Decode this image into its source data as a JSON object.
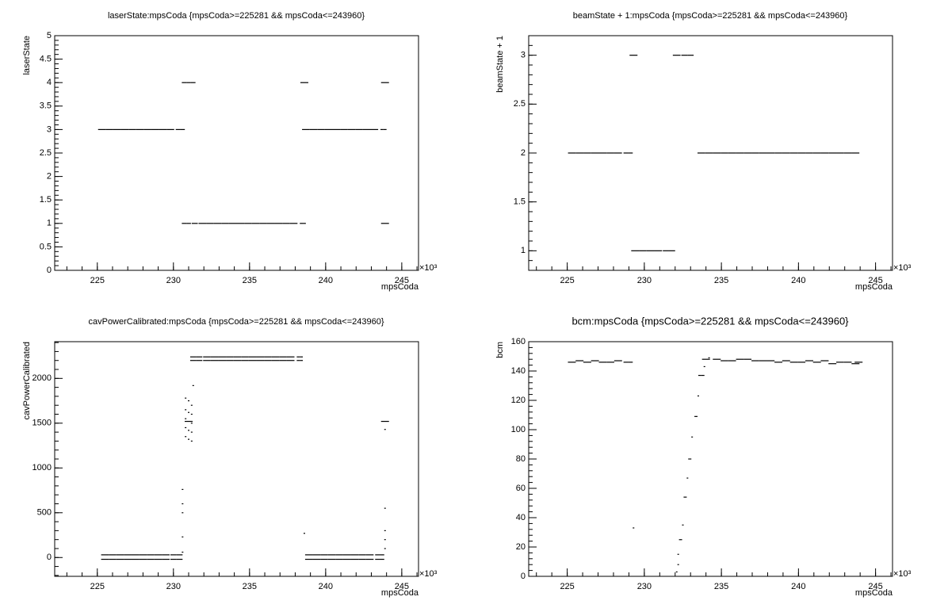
{
  "chart_data": [
    {
      "type": "scatter",
      "title": "laserState:mpsCoda {mpsCoda>=225281 && mpsCoda<=243960}",
      "x_label": "mpsCoda",
      "y_label": "laserState",
      "x_exponent": "×10³",
      "xlim": [
        222.2,
        246.1
      ],
      "xticks": [
        225,
        230,
        235,
        240,
        245
      ],
      "ylim": [
        0,
        5
      ],
      "yticks": [
        0,
        0.5,
        1,
        1.5,
        2,
        2.5,
        3,
        3.5,
        4,
        4.5,
        5
      ],
      "color": "#000000",
      "x": [
        225.3,
        225.8,
        226.3,
        226.8,
        227.3,
        227.8,
        228.3,
        228.8,
        229.3,
        229.8,
        230.3,
        230.6,
        230.7,
        231.0,
        231.3,
        230.7,
        231.0,
        231.4,
        231.9,
        232.4,
        232.9,
        233.4,
        233.9,
        234.4,
        234.9,
        235.4,
        235.9,
        236.4,
        236.9,
        237.4,
        237.9,
        238.4,
        238.6,
        238.6,
        238.7,
        239.2,
        239.7,
        240.2,
        240.7,
        241.2,
        241.7,
        242.2,
        242.7,
        243.2,
        243.7,
        243.9,
        243.9,
        243.9
      ],
      "values": [
        3,
        3,
        3,
        3,
        3,
        3,
        3,
        3,
        3,
        3,
        3,
        3,
        4,
        4,
        4,
        1,
        1,
        1,
        1,
        1,
        1,
        1,
        1,
        1,
        1,
        1,
        1,
        1,
        1,
        1,
        1,
        1,
        1,
        4,
        3,
        3,
        3,
        3,
        3,
        3,
        3,
        3,
        3,
        3,
        3,
        3,
        4,
        1
      ]
    },
    {
      "type": "scatter",
      "title": "beamState + 1:mpsCoda {mpsCoda>=225281 && mpsCoda<=243960}",
      "x_label": "mpsCoda",
      "y_label": "beamState + 1",
      "x_exponent": "×10³",
      "xlim": [
        222.5,
        246.1
      ],
      "xticks": [
        225,
        230,
        235,
        240,
        245
      ],
      "ylim": [
        0.8,
        3.2
      ],
      "yticks": [
        1,
        1.5,
        2,
        2.5,
        3
      ],
      "color": "#000000",
      "x": [
        225.3,
        225.8,
        226.3,
        226.8,
        227.3,
        227.8,
        228.3,
        228.8,
        229.1,
        229.3,
        229.4,
        229.9,
        230.4,
        230.9,
        231.4,
        231.8,
        232.1,
        232.6,
        233.0,
        233.7,
        234.2,
        234.7,
        235.2,
        235.7,
        236.2,
        236.7,
        237.2,
        237.7,
        238.2,
        238.7,
        239.2,
        239.7,
        240.2,
        240.7,
        241.2,
        241.7,
        242.2,
        242.7,
        243.2,
        243.7
      ],
      "values": [
        2,
        2,
        2,
        2,
        2,
        2,
        2,
        2,
        2,
        3,
        1,
        1,
        1,
        1,
        1,
        1,
        3,
        3,
        3,
        2,
        2,
        2,
        2,
        2,
        2,
        2,
        2,
        2,
        2,
        2,
        2,
        2,
        2,
        2,
        2,
        2,
        2,
        2,
        2,
        2
      ]
    },
    {
      "type": "scatter",
      "title": "cavPowerCalibrated:mpsCoda {mpsCoda>=225281 && mpsCoda<=243960}",
      "x_label": "mpsCoda",
      "y_label": "cavPowerCalibrated",
      "x_exponent": "×10³",
      "xlim": [
        222.2,
        246.1
      ],
      "xticks": [
        225,
        230,
        235,
        240,
        245
      ],
      "ylim": [
        -210,
        2410
      ],
      "yticks": [
        0,
        500,
        1000,
        1500,
        2000
      ],
      "color": "#000000",
      "x": [
        225.5,
        226.0,
        226.5,
        227.0,
        227.5,
        228.0,
        228.5,
        229.0,
        229.5,
        230.0,
        230.4,
        225.5,
        226.0,
        226.5,
        227.0,
        227.5,
        228.0,
        228.5,
        229.0,
        229.5,
        230.0,
        230.4,
        231.7,
        232.2,
        232.7,
        233.2,
        233.7,
        234.2,
        234.7,
        235.2,
        235.7,
        236.2,
        236.7,
        237.2,
        237.7,
        238.2,
        238.4,
        231.7,
        232.2,
        232.7,
        233.2,
        233.7,
        234.2,
        234.7,
        235.2,
        235.7,
        236.2,
        236.7,
        237.2,
        237.7,
        238.2,
        238.4,
        238.9,
        239.4,
        239.9,
        240.4,
        240.9,
        241.4,
        241.9,
        242.4,
        242.9,
        243.4,
        243.7,
        238.9,
        239.4,
        239.9,
        240.4,
        240.9,
        241.4,
        241.9,
        242.4,
        242.9,
        243.4,
        243.7,
        230.6,
        230.6,
        230.6,
        230.6,
        230.6,
        230.8,
        230.8,
        230.8,
        230.8,
        230.8,
        231.0,
        231.0,
        231.0,
        231.0,
        231.0,
        231.2,
        231.2,
        231.2,
        231.2,
        231.2,
        231.3,
        231.3,
        231.3,
        238.6,
        243.9,
        243.9,
        243.9,
        243.9,
        243.9,
        243.9
      ],
      "values": [
        30,
        30,
        30,
        30,
        30,
        30,
        30,
        30,
        30,
        30,
        30,
        -20,
        -20,
        -20,
        -20,
        -20,
        -20,
        -20,
        -20,
        -20,
        -20,
        -20,
        2240,
        2240,
        2240,
        2240,
        2240,
        2240,
        2240,
        2240,
        2240,
        2240,
        2240,
        2240,
        2240,
        2240,
        2240,
        2200,
        2200,
        2200,
        2200,
        2200,
        2200,
        2200,
        2200,
        2200,
        2200,
        2200,
        2200,
        2200,
        2200,
        2200,
        30,
        30,
        30,
        30,
        30,
        30,
        30,
        30,
        30,
        30,
        30,
        -20,
        -20,
        -20,
        -20,
        -20,
        -20,
        -20,
        -20,
        -20,
        -20,
        -20,
        60,
        230,
        500,
        600,
        760,
        1350,
        1450,
        1550,
        1650,
        1780,
        1320,
        1420,
        1520,
        1620,
        1750,
        1300,
        1400,
        1500,
        1600,
        1700,
        1920,
        2200,
        2240,
        270,
        1520,
        1430,
        550,
        300,
        200,
        100
      ]
    },
    {
      "type": "scatter",
      "title": "bcm:mpsCoda {mpsCoda>=225281 && mpsCoda<=243960}",
      "x_label": "mpsCoda",
      "y_label": "bcm",
      "x_exponent": "×10³",
      "xlim": [
        222.5,
        246.1
      ],
      "xticks": [
        225,
        230,
        235,
        240,
        245
      ],
      "ylim": [
        0,
        160
      ],
      "yticks": [
        0,
        20,
        40,
        60,
        80,
        100,
        120,
        140,
        160
      ],
      "color": "#000000",
      "x": [
        225.3,
        225.8,
        226.3,
        226.8,
        227.3,
        227.8,
        228.3,
        228.8,
        229.1,
        229.3,
        232.1,
        232.2,
        232.2,
        232.3,
        232.4,
        232.5,
        232.6,
        232.7,
        232.8,
        232.9,
        233.0,
        233.1,
        233.3,
        233.4,
        233.5,
        233.6,
        233.8,
        233.9,
        234.0,
        234.2,
        234.7,
        235.2,
        235.7,
        236.2,
        236.7,
        237.2,
        237.7,
        238.2,
        238.7,
        239.2,
        239.7,
        240.2,
        240.7,
        241.2,
        241.7,
        242.2,
        242.7,
        243.2,
        243.7,
        243.9
      ],
      "values": [
        146,
        147,
        146,
        147,
        146,
        146,
        147,
        146,
        146,
        33,
        3,
        8,
        15,
        25,
        25,
        35,
        54,
        54,
        67,
        80,
        80,
        95,
        109,
        109,
        123,
        137,
        137,
        143,
        148,
        149,
        148,
        147,
        147,
        148,
        148,
        147,
        147,
        147,
        146,
        147,
        146,
        146,
        147,
        146,
        147,
        145,
        146,
        146,
        145,
        146
      ]
    }
  ]
}
